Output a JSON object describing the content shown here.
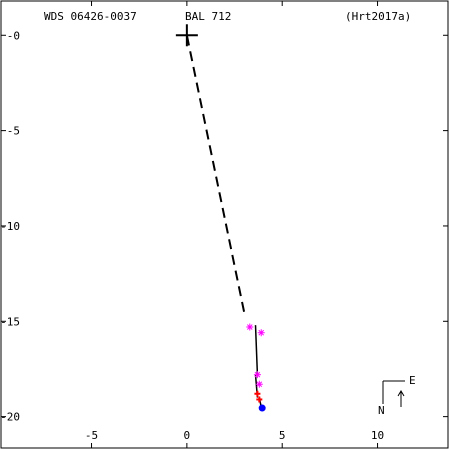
{
  "header": {
    "wds_id": "WDS 06426-0037",
    "discoverer": "BAL 712",
    "orbit_ref": "(Hrt2017a)"
  },
  "compass": {
    "north": "N",
    "east": "E"
  },
  "chart_data": {
    "type": "scatter",
    "title": "",
    "xlabel": "",
    "ylabel": "",
    "xlim": [
      -9.8,
      13.8
    ],
    "ylim": [
      1.85,
      -21.75
    ],
    "x_ticks": [
      -5,
      0,
      5,
      10
    ],
    "y_ticks": [
      0,
      -5,
      -10,
      -15,
      -20
    ],
    "x_tick_labels": [
      "-5",
      "0",
      "5",
      "10"
    ],
    "y_tick_labels": [
      "-0",
      "-5",
      "-10",
      "-15",
      "-20"
    ],
    "grid": false,
    "primary": {
      "x": 0,
      "y": 0
    },
    "orbit_path": [
      [
        3.0,
        -14.5
      ],
      [
        0.0,
        0.0
      ]
    ],
    "residual_lines": [
      {
        "from": [
          3.6,
          -15.2
        ],
        "to": [
          3.7,
          -17.8
        ]
      },
      {
        "from": [
          3.6,
          -17.8
        ],
        "to": [
          3.7,
          -19.0
        ]
      },
      {
        "from": [
          3.8,
          -19.0
        ],
        "to": [
          3.9,
          -19.5
        ]
      }
    ],
    "series": [
      {
        "marker": "asterisk",
        "color": "#ff00ff",
        "points": [
          [
            3.3,
            -15.3
          ],
          [
            3.9,
            -15.6
          ],
          [
            3.7,
            -17.8
          ],
          [
            3.8,
            -18.3
          ]
        ]
      },
      {
        "marker": "plus",
        "color": "#ff0000",
        "points": [
          [
            3.7,
            -18.8
          ],
          [
            3.8,
            -19.1
          ]
        ]
      },
      {
        "marker": "dot",
        "color": "#0000ff",
        "points": [
          [
            3.95,
            -19.55
          ]
        ]
      }
    ]
  }
}
